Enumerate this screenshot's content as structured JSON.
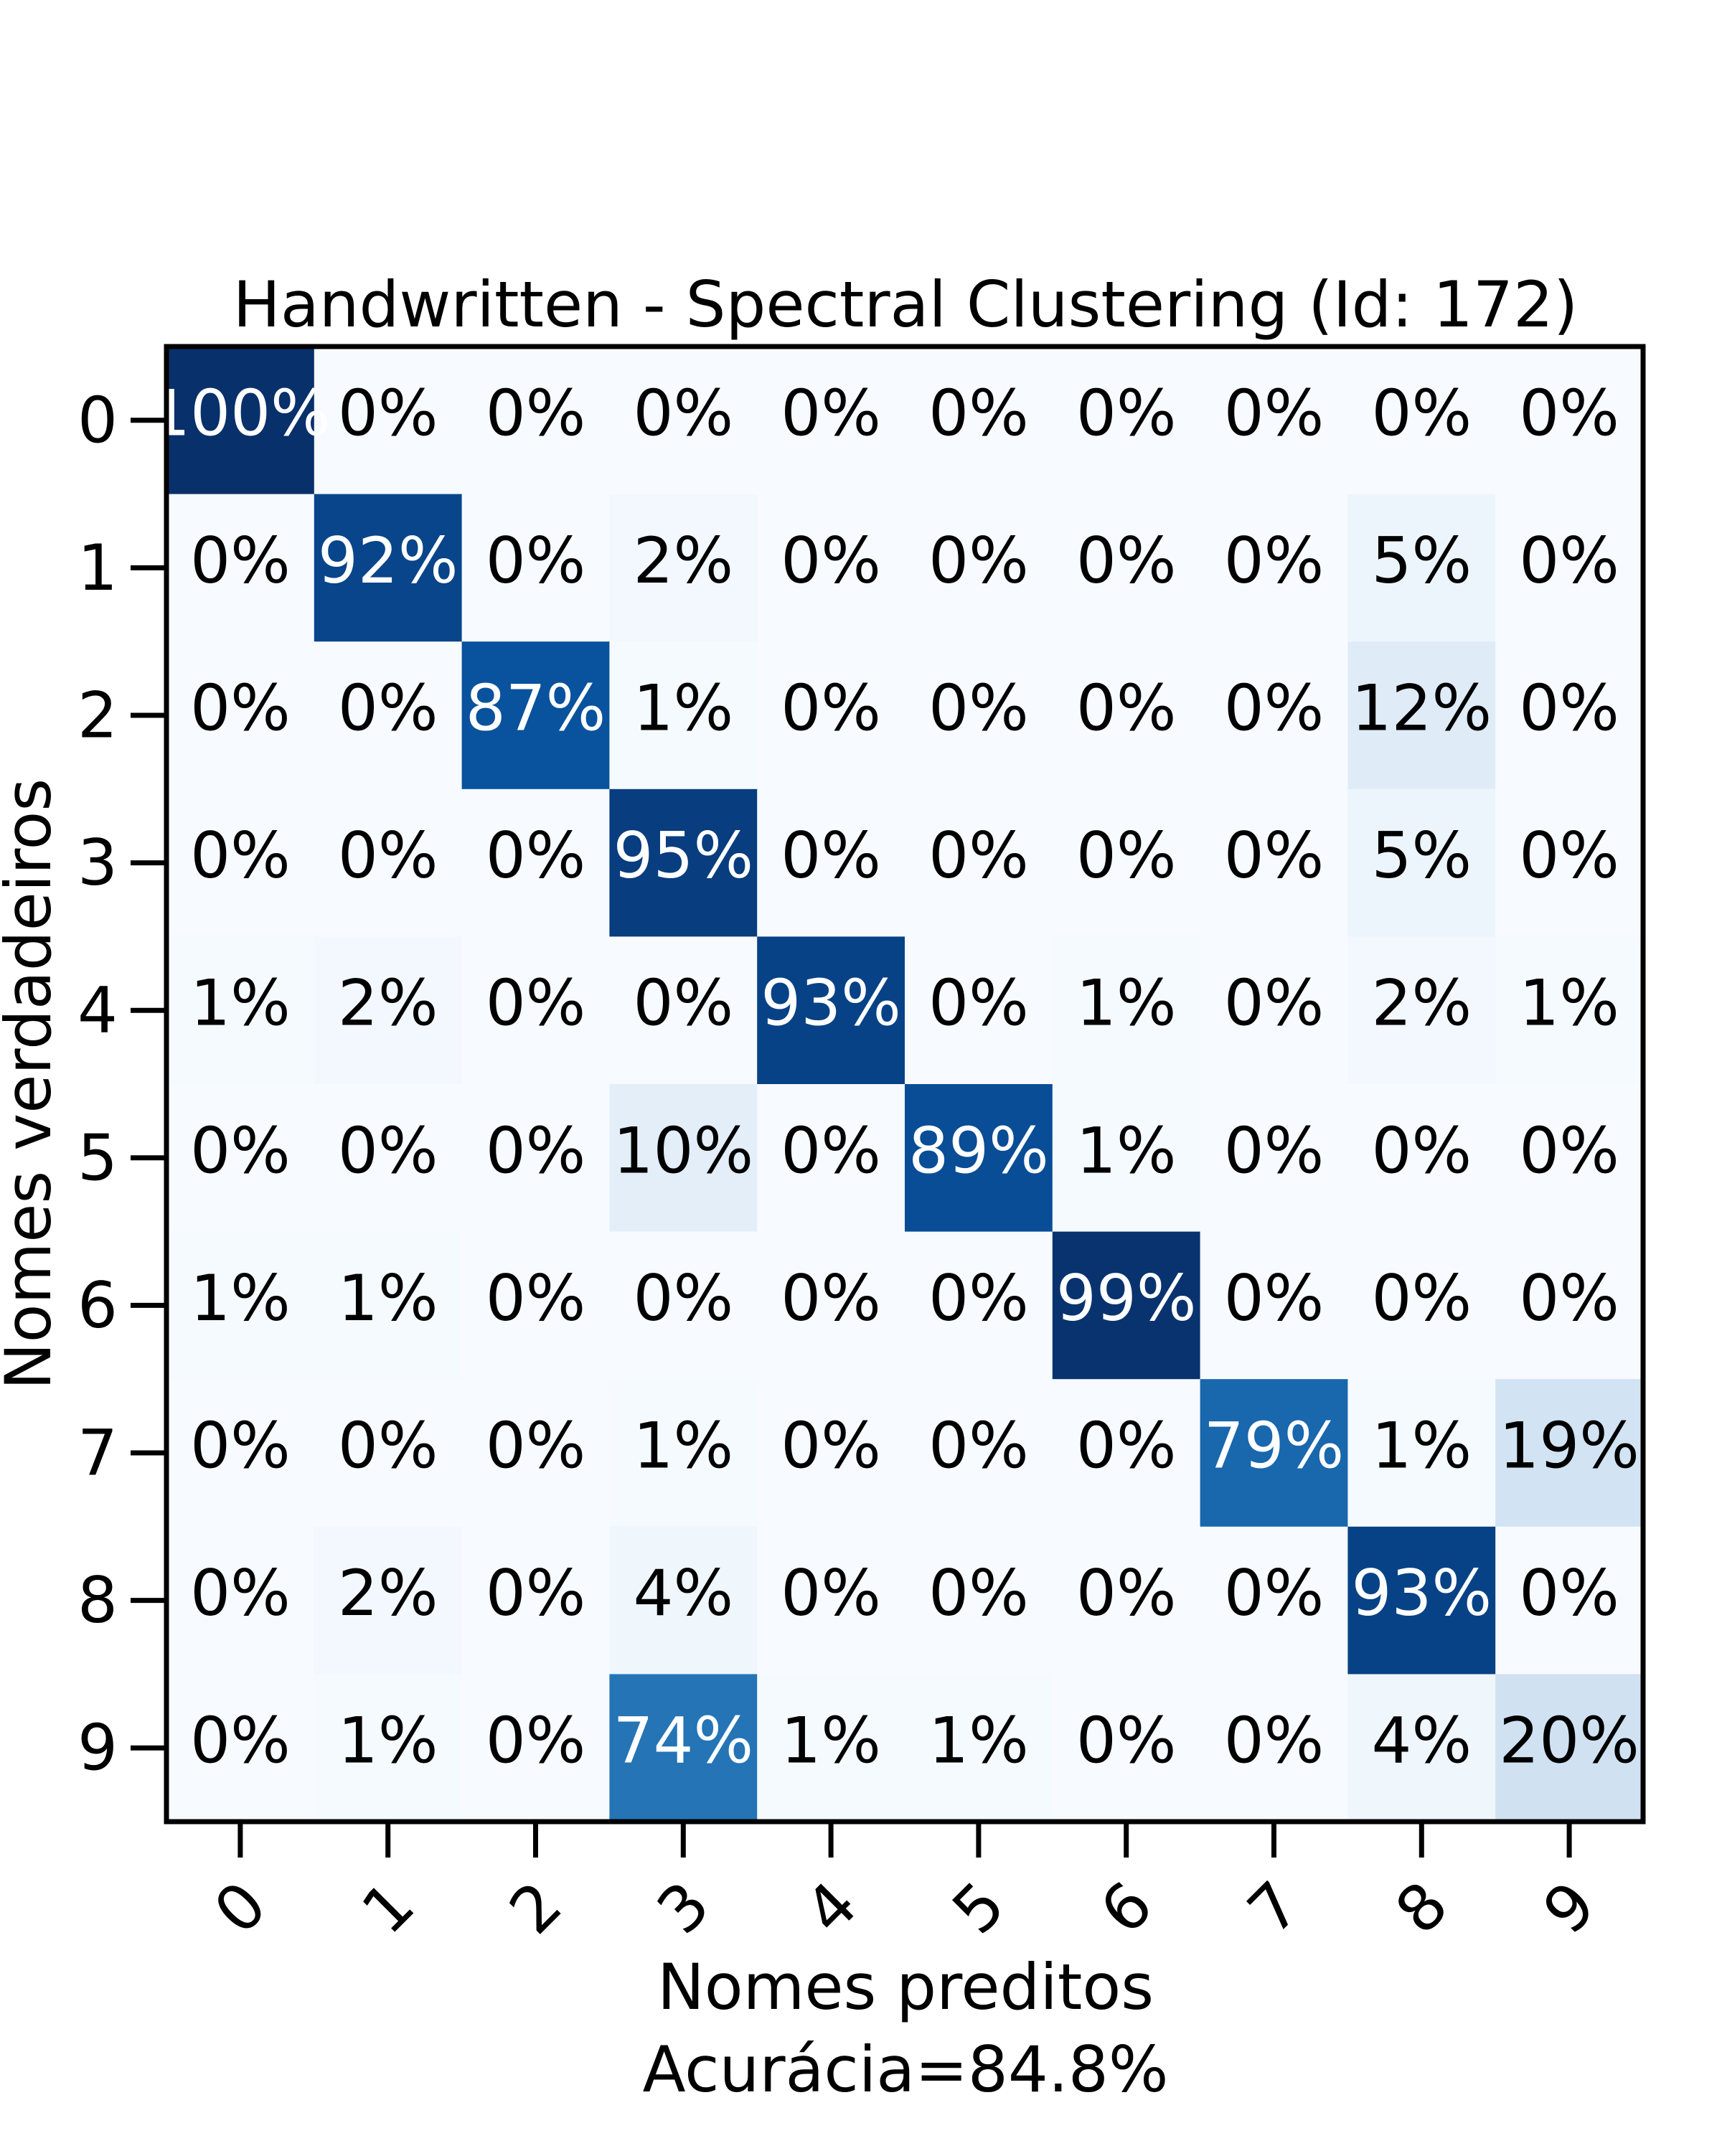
{
  "chart_data": {
    "type": "heatmap",
    "title": "Handwritten - Spectral Clustering (Id: 172)",
    "xlabel": "Nomes preditos",
    "xlabel_sub": "Acurácia=84.8%",
    "ylabel": "Nomes verdadeiros",
    "x_categories": [
      "0",
      "1",
      "2",
      "3",
      "4",
      "5",
      "6",
      "7",
      "8",
      "9"
    ],
    "y_categories": [
      "0",
      "1",
      "2",
      "3",
      "4",
      "5",
      "6",
      "7",
      "8",
      "9"
    ],
    "values": [
      [
        100,
        0,
        0,
        0,
        0,
        0,
        0,
        0,
        0,
        0
      ],
      [
        0,
        92,
        0,
        2,
        0,
        0,
        0,
        0,
        5,
        0
      ],
      [
        0,
        0,
        87,
        1,
        0,
        0,
        0,
        0,
        12,
        0
      ],
      [
        0,
        0,
        0,
        95,
        0,
        0,
        0,
        0,
        5,
        0
      ],
      [
        1,
        2,
        0,
        0,
        93,
        0,
        1,
        0,
        2,
        1
      ],
      [
        0,
        0,
        0,
        10,
        0,
        89,
        1,
        0,
        0,
        0
      ],
      [
        1,
        1,
        0,
        0,
        0,
        0,
        99,
        0,
        0,
        0
      ],
      [
        0,
        0,
        0,
        1,
        0,
        0,
        0,
        79,
        1,
        19
      ],
      [
        0,
        2,
        0,
        4,
        0,
        0,
        0,
        0,
        93,
        0
      ],
      [
        0,
        1,
        0,
        74,
        1,
        1,
        0,
        0,
        4,
        20
      ]
    ],
    "value_unit": "%",
    "colormap": "Blues",
    "vmin": 0,
    "vmax": 100,
    "colors": {
      "low": "#f7fbff",
      "high": "#08306b",
      "text_dark": "#000000",
      "text_light": "#ffffff",
      "frame": "#000000"
    }
  }
}
